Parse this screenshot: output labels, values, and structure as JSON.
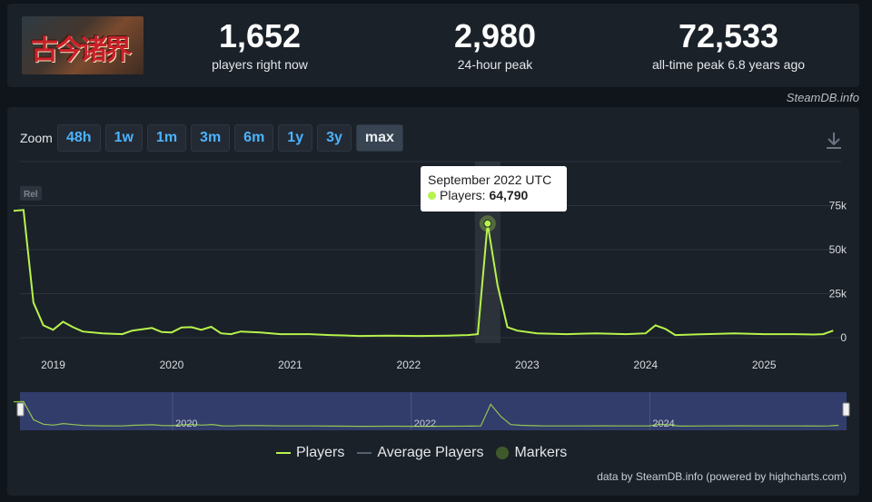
{
  "stats": {
    "current": {
      "value": "1,652",
      "label": "players right now"
    },
    "peak24": {
      "value": "2,980",
      "label": "24-hour peak"
    },
    "alltime": {
      "value": "72,533",
      "label": "all-time peak 6.8 years ago"
    }
  },
  "game_logo_text": "古今诸界",
  "watermark": "SteamDB.info",
  "zoom": {
    "label": "Zoom",
    "buttons": [
      "48h",
      "1w",
      "1m",
      "3m",
      "6m",
      "1y",
      "3y",
      "max"
    ],
    "active": "max"
  },
  "icons": {
    "download": "download-icon"
  },
  "release_marker": "Rel",
  "tooltip": {
    "title": "September 2022 UTC",
    "series": "Players:",
    "value": "64,790"
  },
  "legend": [
    "Players",
    "Average Players",
    "Markers"
  ],
  "credits": "data by SteamDB.info (powered by highcharts.com)",
  "colors": {
    "players": "#b7f34c",
    "average": "#54606e",
    "markers": "#3f5a2a",
    "accent": "#4cb3ff",
    "navigator_fill": "#323d6b"
  },
  "chart_data": {
    "type": "line",
    "series": [
      {
        "name": "Players",
        "points": [
          [
            "2018-09",
            72000
          ],
          [
            "2018-10",
            72500
          ],
          [
            "2018-11",
            20000
          ],
          [
            "2018-12",
            7000
          ],
          [
            "2019-01",
            4500
          ],
          [
            "2019-02",
            9000
          ],
          [
            "2019-03",
            6000
          ],
          [
            "2019-04",
            3500
          ],
          [
            "2019-06",
            2500
          ],
          [
            "2019-08",
            2000
          ],
          [
            "2019-09",
            4000
          ],
          [
            "2019-11",
            5500
          ],
          [
            "2019-12",
            3200
          ],
          [
            "2020-01",
            3000
          ],
          [
            "2020-02",
            5800
          ],
          [
            "2020-03",
            6000
          ],
          [
            "2020-04",
            4500
          ],
          [
            "2020-05",
            6200
          ],
          [
            "2020-06",
            2500
          ],
          [
            "2020-07",
            2000
          ],
          [
            "2020-08",
            3500
          ],
          [
            "2020-10",
            3000
          ],
          [
            "2020-12",
            2000
          ],
          [
            "2021-03",
            2000
          ],
          [
            "2021-05",
            1500
          ],
          [
            "2021-08",
            1000
          ],
          [
            "2021-11",
            1200
          ],
          [
            "2022-02",
            1000
          ],
          [
            "2022-05",
            1200
          ],
          [
            "2022-07",
            1500
          ],
          [
            "2022-08",
            2000
          ],
          [
            "2022-09",
            64790
          ],
          [
            "2022-10",
            30000
          ],
          [
            "2022-11",
            6000
          ],
          [
            "2022-12",
            4000
          ],
          [
            "2023-02",
            2500
          ],
          [
            "2023-05",
            2000
          ],
          [
            "2023-08",
            2500
          ],
          [
            "2023-11",
            2000
          ],
          [
            "2024-01",
            2500
          ],
          [
            "2024-02",
            7000
          ],
          [
            "2024-03",
            5000
          ],
          [
            "2024-04",
            1500
          ],
          [
            "2024-07",
            2000
          ],
          [
            "2024-10",
            2500
          ],
          [
            "2025-01",
            2000
          ],
          [
            "2025-04",
            2000
          ],
          [
            "2025-06",
            1800
          ],
          [
            "2025-07",
            2000
          ],
          [
            "2025-08",
            4000
          ]
        ]
      },
      {
        "name": "Average Players",
        "points": []
      }
    ],
    "x_ticks": [
      "2019",
      "2020",
      "2021",
      "2022",
      "2023",
      "2024",
      "2025"
    ],
    "y_ticks": [
      "0",
      "25k",
      "50k",
      "75k"
    ],
    "ylim": [
      0,
      100000
    ],
    "navigator_ticks": [
      "2020",
      "2022",
      "2024"
    ],
    "highlight": {
      "x": "2022-09",
      "y": 64790
    },
    "grid": true,
    "legend_position": "bottom-center"
  }
}
